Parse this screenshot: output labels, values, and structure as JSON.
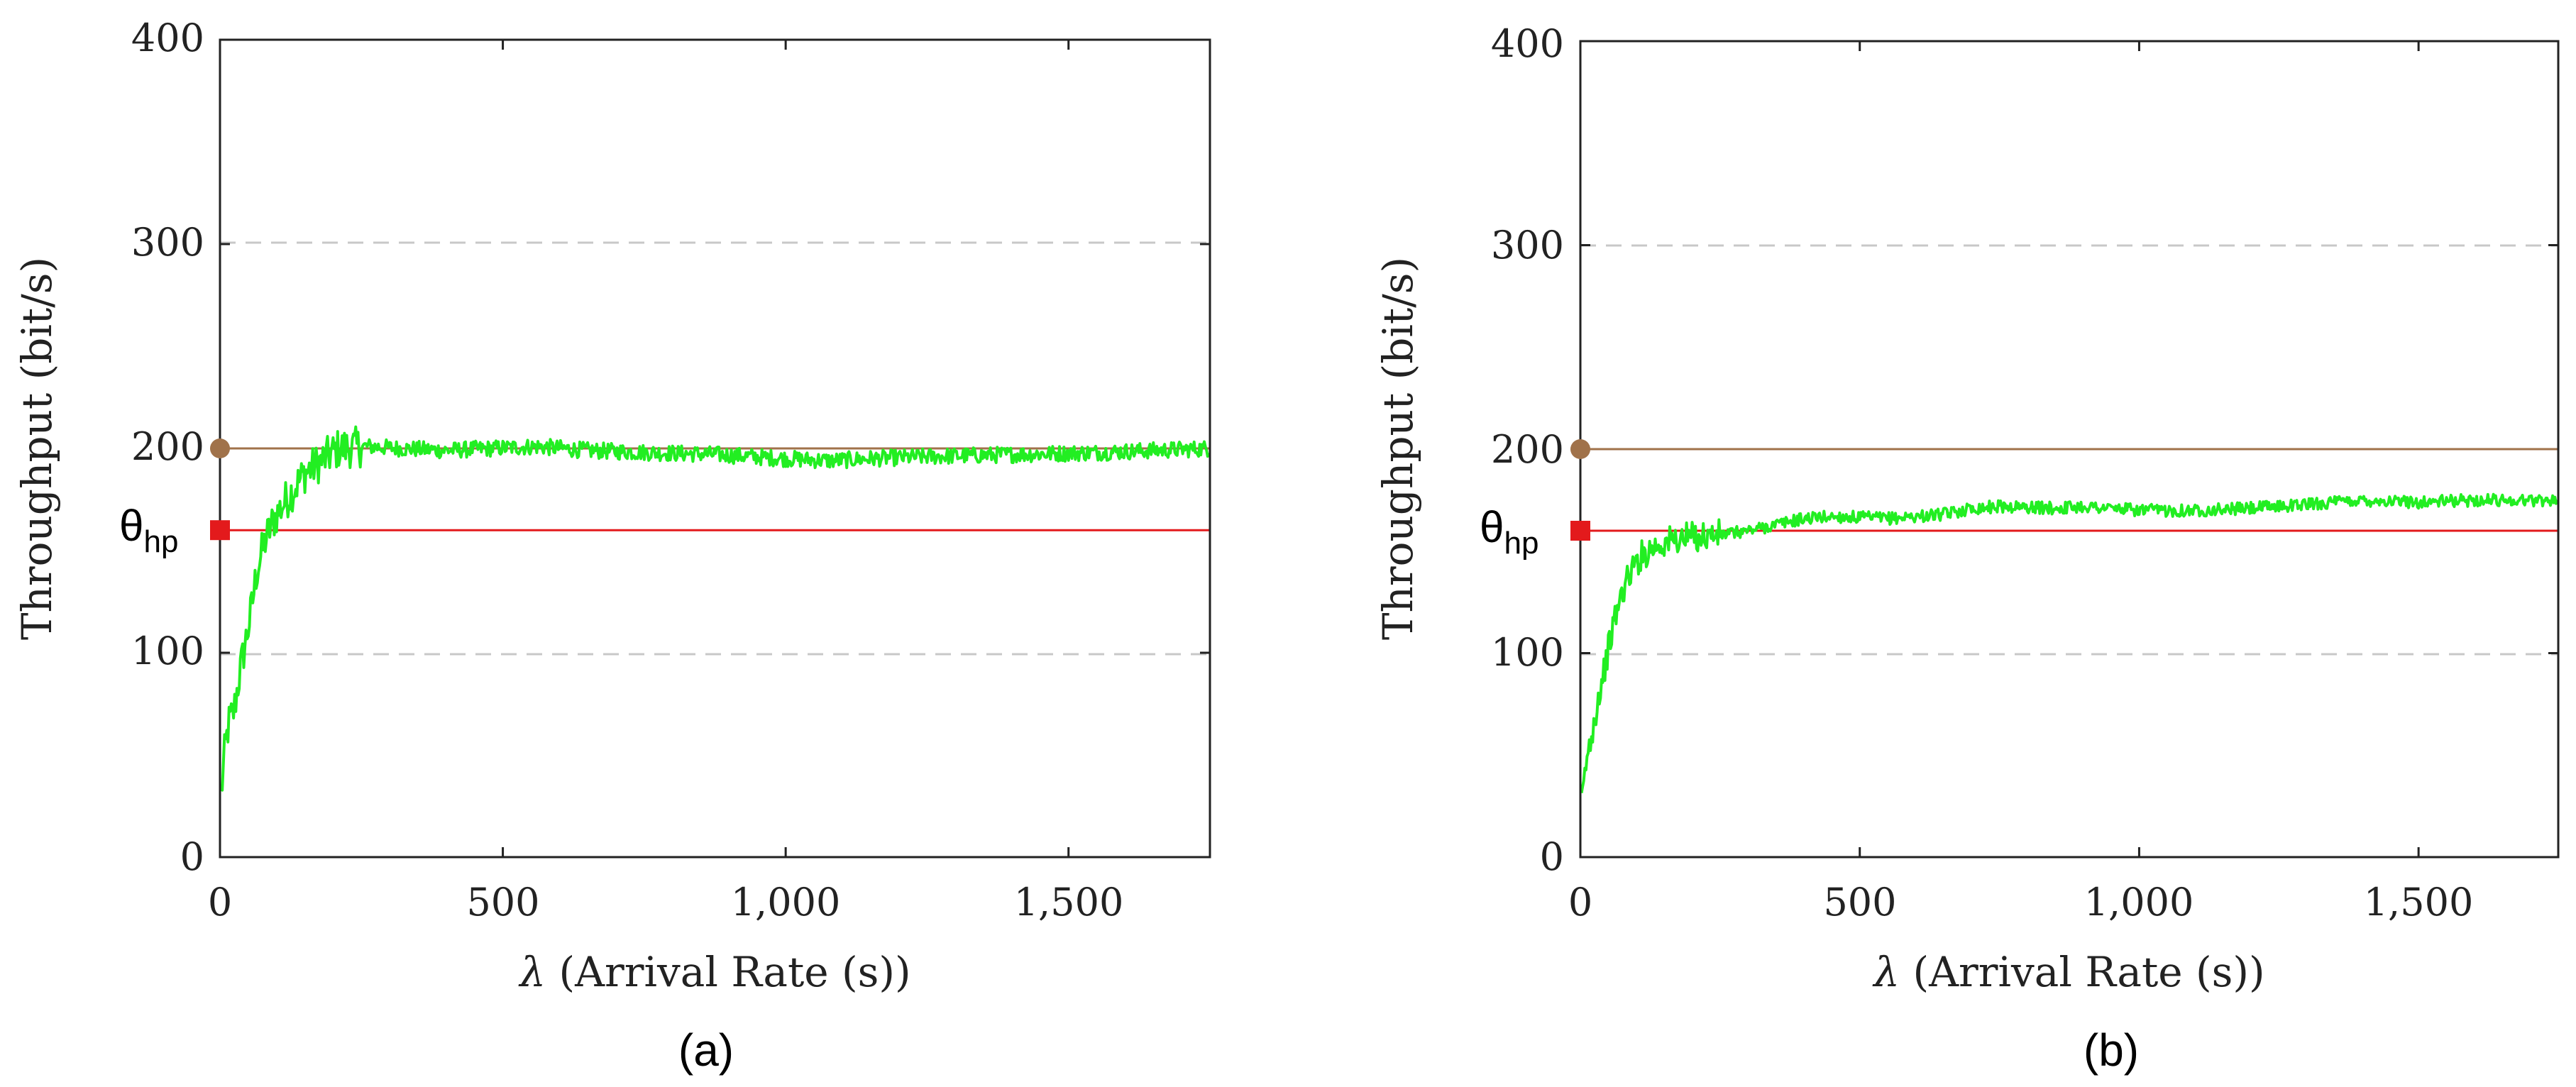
{
  "charts": [
    {
      "caption": "(a)",
      "threshold_symbol": "θ",
      "threshold_subscript": "hp"
    },
    {
      "caption": "(b)",
      "threshold_symbol": "θ",
      "threshold_subscript": "hp"
    }
  ],
  "chart_data": [
    {
      "type": "line",
      "panel": "(a)",
      "title": "",
      "xlabel_symbol": "λ",
      "xlabel": "(Arrival Rate (s))",
      "ylabel": "Throughput (bit/s)",
      "xlim": [
        0,
        1750
      ],
      "ylim": [
        0,
        400
      ],
      "xticks": [
        0,
        500,
        1000,
        1500
      ],
      "xtick_labels": [
        "0",
        "500",
        "1,000",
        "1,500"
      ],
      "yticks": [
        0,
        100,
        200,
        300,
        400
      ],
      "ytick_labels": [
        "0",
        "100",
        "200",
        "300",
        "400"
      ],
      "grid": "horizontal dashed at 100 and 300",
      "colors": {
        "throughput": "#22ee22",
        "max_line": "#a0724a",
        "threshold": "#e31a1c"
      },
      "reference_lines": [
        {
          "name": "max",
          "y": 200,
          "marker": "circle"
        },
        {
          "name": "threshold",
          "y": 160,
          "marker": "square"
        }
      ],
      "series": [
        {
          "name": "throughput",
          "noise": 4,
          "x": [
            2,
            8,
            15,
            25,
            35,
            45,
            55,
            65,
            80,
            95,
            110,
            130,
            150,
            170,
            190,
            210,
            260,
            320,
            400,
            480,
            560,
            650,
            760,
            880,
            1000,
            1080,
            1150,
            1250,
            1400,
            1550,
            1650,
            1750
          ],
          "y": [
            30,
            50,
            65,
            72,
            90,
            105,
            120,
            140,
            155,
            165,
            172,
            180,
            188,
            192,
            196,
            200,
            201,
            200,
            199,
            200,
            201,
            199,
            198,
            197,
            195,
            194,
            195,
            196,
            197,
            198,
            199,
            200
          ]
        }
      ]
    },
    {
      "type": "line",
      "panel": "(b)",
      "title": "",
      "xlabel_symbol": "λ",
      "xlabel": "(Arrival Rate (s))",
      "ylabel": "Throughput (bit/s)",
      "xlim": [
        0,
        1750
      ],
      "ylim": [
        0,
        400
      ],
      "xticks": [
        0,
        500,
        1000,
        1500
      ],
      "xtick_labels": [
        "0",
        "500",
        "1,000",
        "1,500"
      ],
      "yticks": [
        0,
        100,
        200,
        300,
        400
      ],
      "ytick_labels": [
        "0",
        "100",
        "200",
        "300",
        "400"
      ],
      "grid": "horizontal dashed at 100 and 300",
      "colors": {
        "throughput": "#22ee22",
        "max_line": "#a0724a",
        "threshold": "#e31a1c"
      },
      "reference_lines": [
        {
          "name": "max",
          "y": 200,
          "marker": "circle"
        },
        {
          "name": "threshold",
          "y": 160,
          "marker": "square"
        }
      ],
      "series": [
        {
          "name": "throughput",
          "noise": 3,
          "x": [
            2,
            10,
            20,
            30,
            45,
            60,
            75,
            90,
            110,
            130,
            160,
            200,
            250,
            300,
            350,
            400,
            450,
            550,
            650,
            700,
            750,
            850,
            900,
            1000,
            1100,
            1200,
            1300,
            1400,
            1500,
            1600,
            1750
          ],
          "y": [
            25,
            45,
            60,
            75,
            95,
            115,
            130,
            140,
            148,
            152,
            155,
            157,
            158,
            160,
            163,
            166,
            167,
            166,
            168,
            171,
            172,
            171,
            172,
            170,
            170,
            171,
            173,
            175,
            174,
            175,
            175
          ]
        }
      ]
    }
  ]
}
